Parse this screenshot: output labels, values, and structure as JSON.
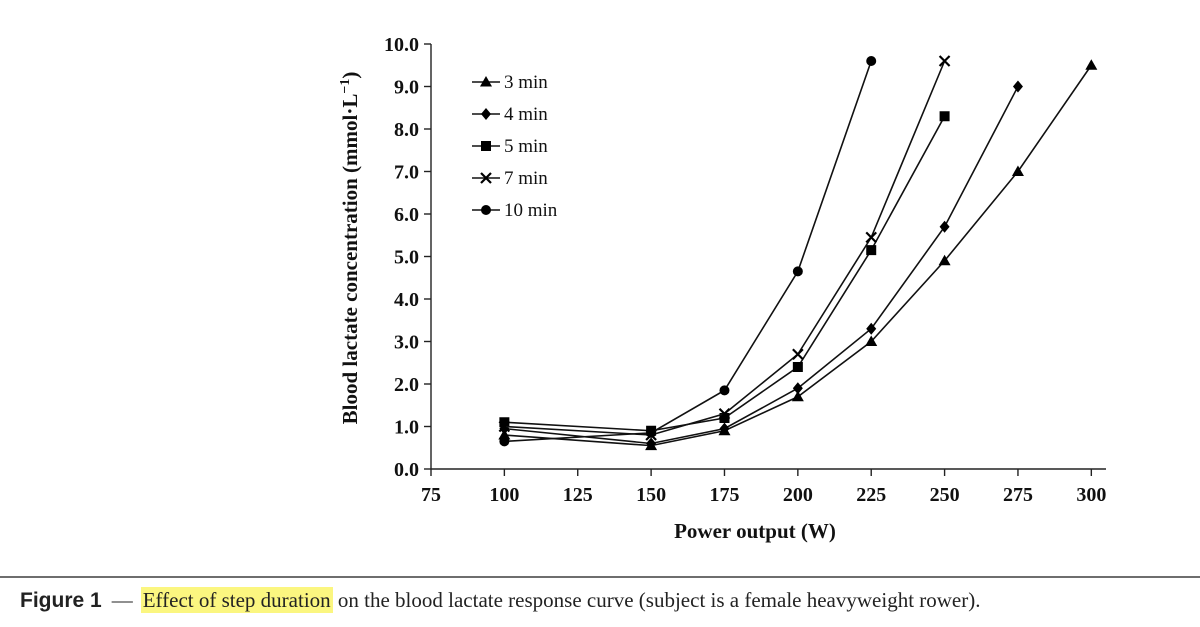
{
  "chart_data": {
    "type": "line",
    "xlabel": "Power output (W)",
    "ylabel": "Blood lactate concentration (mmol·L",
    "ylabel_sup": "−1",
    "ylabel_close": ")",
    "xlim": [
      75,
      305
    ],
    "ylim": [
      0,
      10
    ],
    "xticks": [
      75,
      100,
      125,
      150,
      175,
      200,
      225,
      250,
      275,
      300
    ],
    "xtick_labels": [
      "75",
      "100",
      "125",
      "150",
      "175",
      "200",
      "225",
      "250",
      "275",
      "300"
    ],
    "yticks": [
      0,
      1,
      2,
      3,
      4,
      5,
      6,
      7,
      8,
      9,
      10
    ],
    "ytick_labels": [
      "0.0",
      "1.0",
      "2.0",
      "3.0",
      "4.0",
      "5.0",
      "6.0",
      "7.0",
      "8.0",
      "9.0",
      "10.0"
    ],
    "legend_position": "top-left",
    "series": [
      {
        "name": "3 min",
        "marker": "triangle",
        "x": [
          100,
          150,
          175,
          200,
          225,
          250,
          275,
          300
        ],
        "values": [
          0.8,
          0.55,
          0.9,
          1.7,
          3.0,
          4.9,
          7.0,
          9.5
        ]
      },
      {
        "name": "4 min",
        "marker": "diamond",
        "x": [
          100,
          150,
          175,
          200,
          225,
          250,
          275
        ],
        "values": [
          0.95,
          0.6,
          0.95,
          1.9,
          3.3,
          5.7,
          9.0
        ]
      },
      {
        "name": "5 min",
        "marker": "square",
        "x": [
          100,
          150,
          175,
          200,
          225,
          250
        ],
        "values": [
          1.1,
          0.9,
          1.2,
          2.4,
          5.15,
          8.3
        ]
      },
      {
        "name": "7 min",
        "marker": "x",
        "x": [
          100,
          150,
          175,
          200,
          225,
          250
        ],
        "values": [
          1.0,
          0.8,
          1.3,
          2.7,
          5.45,
          9.6
        ]
      },
      {
        "name": "10 min",
        "marker": "circle",
        "x": [
          100,
          150,
          175,
          200,
          225
        ],
        "values": [
          0.65,
          0.85,
          1.85,
          4.65,
          9.6
        ]
      }
    ]
  },
  "caption": {
    "label": "Figure 1",
    "dash": "—",
    "highlighted": "Effect of step duration",
    "text": " on the blood lactate response curve (subject is a female heavyweight rower)."
  }
}
